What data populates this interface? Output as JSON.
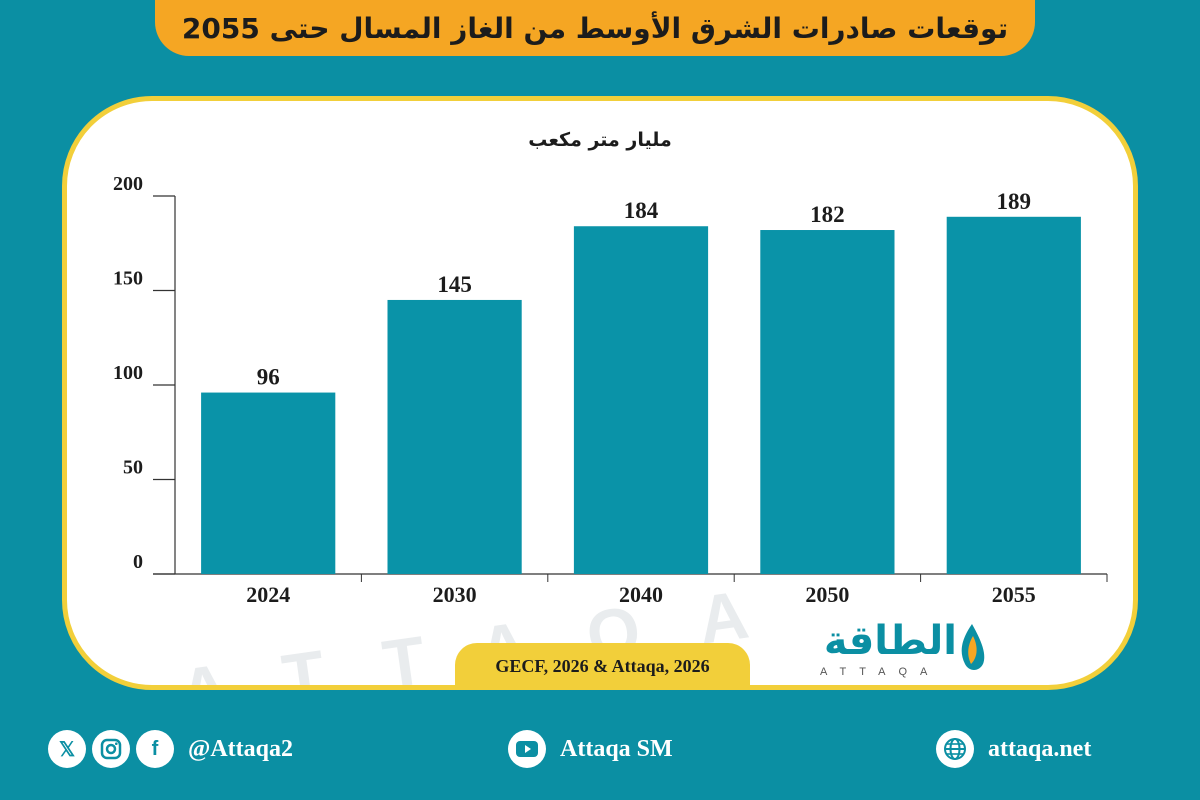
{
  "title": "توقعات صادرات الشرق الأوسط من الغاز المسال حتى 2055",
  "source": "GECF, 2026 & Attaqa, 2026",
  "brand": {
    "arabic": "الطاقة",
    "latin": "ATTAQA"
  },
  "footer": {
    "twitter_handle": "@Attaqa2",
    "youtube_channel": "Attaqa SM",
    "website": "attaqa.net"
  },
  "colors": {
    "background": "#0b8fa3",
    "bar": "#0a93a8",
    "banner": "#f5a623",
    "card_border": "#f2cf3a"
  },
  "chart_data": {
    "type": "bar",
    "ylabel": "مليار متر مكعب",
    "categories": [
      "2024",
      "2030",
      "2040",
      "2050",
      "2055"
    ],
    "values": [
      96,
      145,
      184,
      182,
      189
    ],
    "ylim": [
      0,
      200
    ],
    "yticks": [
      0,
      50,
      100,
      150,
      200
    ],
    "data_labels": true,
    "grid": false
  }
}
